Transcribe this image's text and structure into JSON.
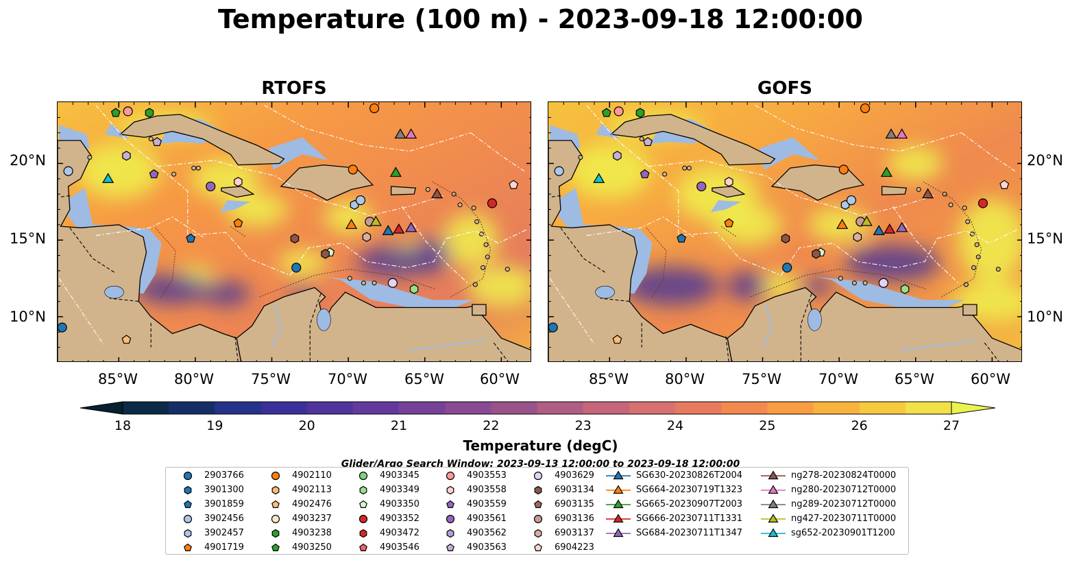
{
  "title": "Temperature (100 m) - 2023-09-18 12:00:00",
  "panels": [
    {
      "id": "rtofs",
      "label": "RTOFS"
    },
    {
      "id": "gofs",
      "label": "GOFS"
    }
  ],
  "map": {
    "lon_range": [
      -89,
      -58
    ],
    "lat_range": [
      7,
      24
    ],
    "x_ticks": [
      "85°W",
      "80°W",
      "75°W",
      "70°W",
      "65°W",
      "60°W"
    ],
    "y_ticks": [
      "20°N",
      "15°N",
      "10°N"
    ]
  },
  "colorbar": {
    "min": 18,
    "max": 27,
    "tick_labels": [
      "18",
      "19",
      "20",
      "21",
      "22",
      "23",
      "24",
      "25",
      "26",
      "27"
    ],
    "title": "Temperature (degC)",
    "colors": [
      "#06202f",
      "#0b2a45",
      "#152f66",
      "#26318a",
      "#3a309a",
      "#50339d",
      "#63399d",
      "#754199",
      "#874a93",
      "#9a528b",
      "#b05d83",
      "#c6667b",
      "#d77070",
      "#e67b60",
      "#f28a4f",
      "#f89d44",
      "#f8b33f",
      "#f6c93f",
      "#f2e049",
      "#e9f452"
    ]
  },
  "legend": {
    "caption": "Glider/Argo Search Window: 2023-09-13 12:00:00 to 2023-09-18 12:00:00",
    "items": [
      {
        "label": "2903766",
        "marker": "circle",
        "color": "#1f77b4"
      },
      {
        "label": "3901300",
        "marker": "hexagon",
        "color": "#1f77b4"
      },
      {
        "label": "3901859",
        "marker": "pentagon",
        "color": "#1f77b4"
      },
      {
        "label": "3902456",
        "marker": "circle",
        "color": "#aec7e8"
      },
      {
        "label": "3902457",
        "marker": "hexagon",
        "color": "#aec7e8"
      },
      {
        "label": "4901719",
        "marker": "pentagon",
        "color": "#ff7f0e"
      },
      {
        "label": "4902110",
        "marker": "circle",
        "color": "#ff7f0e"
      },
      {
        "label": "4902113",
        "marker": "hexagon",
        "color": "#ffbb78"
      },
      {
        "label": "4902476",
        "marker": "pentagon",
        "color": "#ffbb78"
      },
      {
        "label": "4903237",
        "marker": "circle",
        "color": "#fde5c8"
      },
      {
        "label": "4903238",
        "marker": "hexagon",
        "color": "#2ca02c"
      },
      {
        "label": "4903250",
        "marker": "pentagon",
        "color": "#2ca02c"
      },
      {
        "label": "4903345",
        "marker": "circle",
        "color": "#7fd17f"
      },
      {
        "label": "4903349",
        "marker": "hexagon",
        "color": "#98df8a"
      },
      {
        "label": "4903350",
        "marker": "pentagon",
        "color": "#d8f5d0"
      },
      {
        "label": "4903352",
        "marker": "circle",
        "color": "#d62728"
      },
      {
        "label": "4903472",
        "marker": "hexagon",
        "color": "#d62728"
      },
      {
        "label": "4903546",
        "marker": "pentagon",
        "color": "#e8646a"
      },
      {
        "label": "4903553",
        "marker": "circle",
        "color": "#ff9896"
      },
      {
        "label": "4903558",
        "marker": "hexagon",
        "color": "#ffd0cc"
      },
      {
        "label": "4903559",
        "marker": "pentagon",
        "color": "#9467bd"
      },
      {
        "label": "4903561",
        "marker": "circle",
        "color": "#9467bd"
      },
      {
        "label": "4903562",
        "marker": "hexagon",
        "color": "#b39ddb"
      },
      {
        "label": "4903563",
        "marker": "pentagon",
        "color": "#c5b0d5"
      },
      {
        "label": "4903629",
        "marker": "circle",
        "color": "#e2d3f2"
      },
      {
        "label": "6903134",
        "marker": "hexagon",
        "color": "#8c564b"
      },
      {
        "label": "6903135",
        "marker": "pentagon",
        "color": "#a0695c"
      },
      {
        "label": "6903136",
        "marker": "circle",
        "color": "#c49c94"
      },
      {
        "label": "6903137",
        "marker": "hexagon",
        "color": "#d8ada3"
      },
      {
        "label": "6904223",
        "marker": "pentagon",
        "color": "#fbd7cf"
      },
      {
        "label": "SG630-20230826T2004",
        "marker": "triangle",
        "color": "#1f77b4"
      },
      {
        "label": "SG664-20230719T1323",
        "marker": "triangle",
        "color": "#ff7f0e"
      },
      {
        "label": "SG665-20230907T2003",
        "marker": "triangle",
        "color": "#2ca02c"
      },
      {
        "label": "SG666-20230711T1331",
        "marker": "triangle",
        "color": "#d62728"
      },
      {
        "label": "SG684-20230711T1347",
        "marker": "triangle",
        "color": "#9467bd"
      },
      {
        "label": "ng278-20230824T0000",
        "marker": "triangle",
        "color": "#8c564b"
      },
      {
        "label": "ng280-20230712T0000",
        "marker": "triangle",
        "color": "#e377c2"
      },
      {
        "label": "ng289-20230712T0000",
        "marker": "triangle",
        "color": "#7f7f7f"
      },
      {
        "label": "ng427-20230711T0000",
        "marker": "triangle",
        "color": "#bcbd22"
      },
      {
        "label": "sg652-20230901T1200",
        "marker": "triangle",
        "color": "#17becf"
      }
    ]
  }
}
